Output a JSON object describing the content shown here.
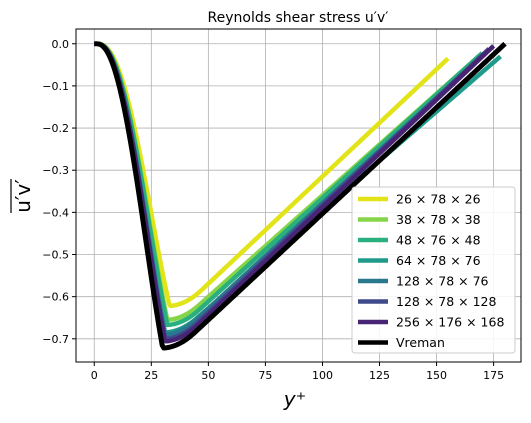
{
  "chart_data": {
    "type": "line",
    "title": "Reynolds shear stress u′v′",
    "xlabel": "y⁺",
    "ylabel": "u′v′",
    "xlim": [
      -8,
      187
    ],
    "ylim": [
      -0.755,
      0.035
    ],
    "xticks": [
      0,
      25,
      50,
      75,
      100,
      125,
      150,
      175
    ],
    "xtick_labels": [
      "0",
      "25",
      "50",
      "75",
      "100",
      "125",
      "150",
      "175"
    ],
    "yticks": [
      0.0,
      -0.1,
      -0.2,
      -0.3,
      -0.4,
      -0.5,
      -0.6,
      -0.7
    ],
    "ytick_labels": [
      "0.0",
      "−0.1",
      "−0.2",
      "−0.3",
      "−0.4",
      "−0.5",
      "−0.6",
      "−0.7"
    ],
    "grid": true,
    "legend_position": "lower-right",
    "series": [
      {
        "name": "26 × 78 × 26",
        "color": "#e2e418",
        "end_x": 155,
        "end_y": -0.035,
        "min_x": 33,
        "min_y": -0.622,
        "knee_x": 5.5
      },
      {
        "name": "38 × 78 × 38",
        "color": "#86d549",
        "end_x": 169,
        "end_y": -0.027,
        "min_x": 32,
        "min_y": -0.655,
        "knee_x": 5
      },
      {
        "name": "48 × 76 × 48",
        "color": "#2ab07f",
        "end_x": 170,
        "end_y": -0.022,
        "min_x": 32,
        "min_y": -0.667,
        "knee_x": 4.8
      },
      {
        "name": "64 × 78 × 76",
        "color": "#1e9b8a",
        "end_x": 178,
        "end_y": -0.03,
        "min_x": 31,
        "min_y": -0.685,
        "knee_x": 4.5
      },
      {
        "name": "128 × 78 × 76",
        "color": "#2a788e",
        "end_x": 172,
        "end_y": -0.018,
        "min_x": 31,
        "min_y": -0.69,
        "knee_x": 4.3
      },
      {
        "name": "128 × 78 × 128",
        "color": "#3e4a89",
        "end_x": 173,
        "end_y": -0.012,
        "min_x": 31,
        "min_y": -0.7,
        "knee_x": 4.1
      },
      {
        "name": "256 × 176 × 168",
        "color": "#482475",
        "end_x": 175,
        "end_y": -0.005,
        "min_x": 31,
        "min_y": -0.706,
        "knee_x": 4
      },
      {
        "name": "Vreman",
        "color": "#000000",
        "end_x": 180,
        "end_y": 0.0,
        "min_x": 30,
        "min_y": -0.722,
        "knee_x": 3.5
      }
    ]
  }
}
